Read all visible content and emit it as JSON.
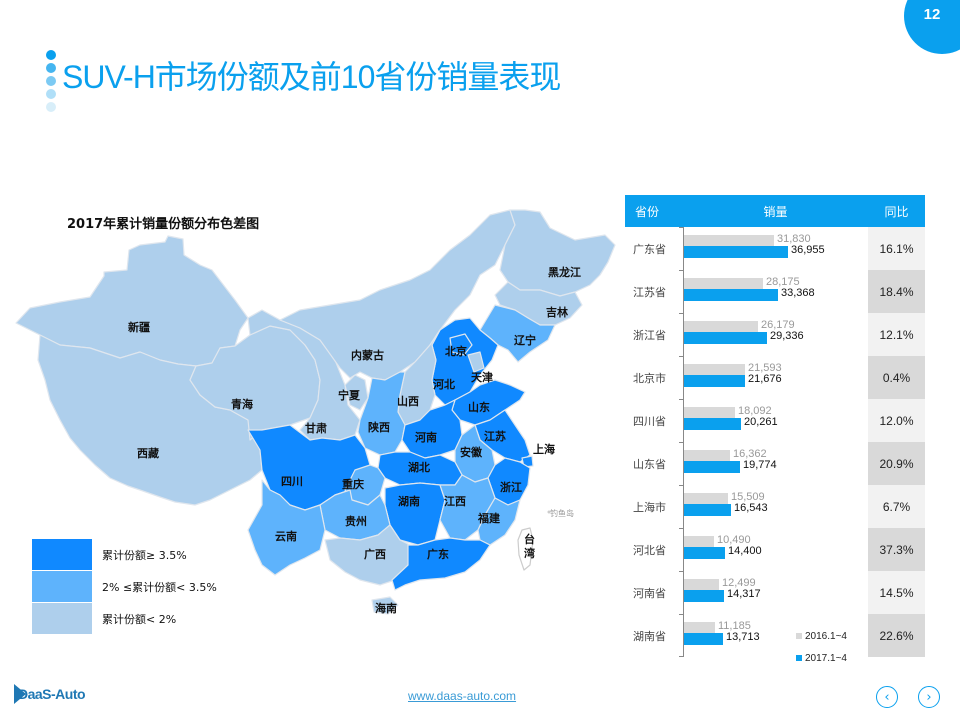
{
  "page": {
    "number": "12",
    "title": "SUV-H市场份额及前10省份销量表现",
    "title_dot_colors": [
      "#0aa0ee",
      "#45b5f0",
      "#7ccaf3",
      "#b0dff8",
      "#d8eef9"
    ]
  },
  "map": {
    "title": "2017年累计销量份额分布色差图",
    "colors": {
      "high": "#1089ff",
      "mid": "#5eb3fc",
      "low": "#aecfec",
      "border": "#dfe6ee"
    },
    "legend": [
      {
        "label": "累计份额≥ 3.5%",
        "color": "#1089ff"
      },
      {
        "label": "2% ≤累计份额< 3.5%",
        "color": "#5eb3fc"
      },
      {
        "label": "累计份额< 2%",
        "color": "#aecfec"
      }
    ],
    "provinces": [
      {
        "name": "黑龙江",
        "tier": "low"
      },
      {
        "name": "吉林",
        "tier": "low"
      },
      {
        "name": "辽宁",
        "tier": "mid"
      },
      {
        "name": "新疆",
        "tier": "low"
      },
      {
        "name": "内蒙古",
        "tier": "low"
      },
      {
        "name": "北京",
        "tier": "high"
      },
      {
        "name": "天津",
        "tier": "low"
      },
      {
        "name": "河北",
        "tier": "high"
      },
      {
        "name": "宁夏",
        "tier": "low"
      },
      {
        "name": "山西",
        "tier": "low"
      },
      {
        "name": "山东",
        "tier": "high"
      },
      {
        "name": "青海",
        "tier": "low"
      },
      {
        "name": "甘肃",
        "tier": "low"
      },
      {
        "name": "陕西",
        "tier": "mid"
      },
      {
        "name": "河南",
        "tier": "high"
      },
      {
        "name": "江苏",
        "tier": "high"
      },
      {
        "name": "安徽",
        "tier": "mid"
      },
      {
        "name": "上海",
        "tier": "high"
      },
      {
        "name": "西藏",
        "tier": "low"
      },
      {
        "name": "四川",
        "tier": "high"
      },
      {
        "name": "重庆",
        "tier": "mid"
      },
      {
        "name": "湖北",
        "tier": "high"
      },
      {
        "name": "浙江",
        "tier": "high"
      },
      {
        "name": "湖南",
        "tier": "high"
      },
      {
        "name": "江西",
        "tier": "mid"
      },
      {
        "name": "贵州",
        "tier": "mid"
      },
      {
        "name": "福建",
        "tier": "mid"
      },
      {
        "name": "云南",
        "tier": "mid"
      },
      {
        "name": "广西",
        "tier": "low"
      },
      {
        "name": "广东",
        "tier": "high"
      },
      {
        "name": "台湾",
        "tier": "none"
      },
      {
        "name": "海南",
        "tier": "low"
      }
    ],
    "island_label": "钓鱼岛"
  },
  "table": {
    "headers": {
      "province": "省份",
      "sales": "销量",
      "yoy": "同比"
    },
    "colors": {
      "header_bg": "#0aa0ee",
      "bar_2016": "#d9d9d9",
      "bar_2017": "#0aa0ee",
      "yoy_light": "#f2f2f2",
      "yoy_dark": "#d9d9d9"
    },
    "legend": [
      {
        "label": "2016.1~4",
        "color": "#d9d9d9"
      },
      {
        "label": "2017.1~4",
        "color": "#0aa0ee"
      }
    ]
  },
  "chart_data": {
    "type": "bar",
    "orientation": "horizontal",
    "title": "",
    "categories": [
      "广东省",
      "江苏省",
      "浙江省",
      "北京市",
      "四川省",
      "山东省",
      "上海市",
      "河北省",
      "河南省",
      "湖南省"
    ],
    "series": [
      {
        "name": "2016.1~4",
        "values": [
          31830,
          28175,
          26179,
          21593,
          18092,
          16362,
          15509,
          10490,
          12499,
          11185
        ],
        "labels": [
          "31,830",
          "28,175",
          "26,179",
          "21,593",
          "18,092",
          "16,362",
          "15,509",
          "10,490",
          "12,499",
          "11,185"
        ]
      },
      {
        "name": "2017.1~4",
        "values": [
          36955,
          33368,
          29336,
          21676,
          20261,
          19774,
          16543,
          14400,
          14317,
          13713
        ],
        "labels": [
          "36,955",
          "33,368",
          "29,336",
          "21,676",
          "20,261",
          "19,774",
          "16,543",
          "14,400",
          "14,317",
          "13,713"
        ]
      }
    ],
    "yoy": [
      "16.1%",
      "18.4%",
      "12.1%",
      "0.4%",
      "12.0%",
      "20.9%",
      "6.7%",
      "37.3%",
      "14.5%",
      "22.6%"
    ],
    "xlabel": "",
    "ylabel": "",
    "legend_position": "bottom-right",
    "grid": false
  },
  "footer": {
    "logo": "DaaS-Auto",
    "url": "www.daas-auto.com",
    "prev": "‹",
    "next": "›"
  }
}
